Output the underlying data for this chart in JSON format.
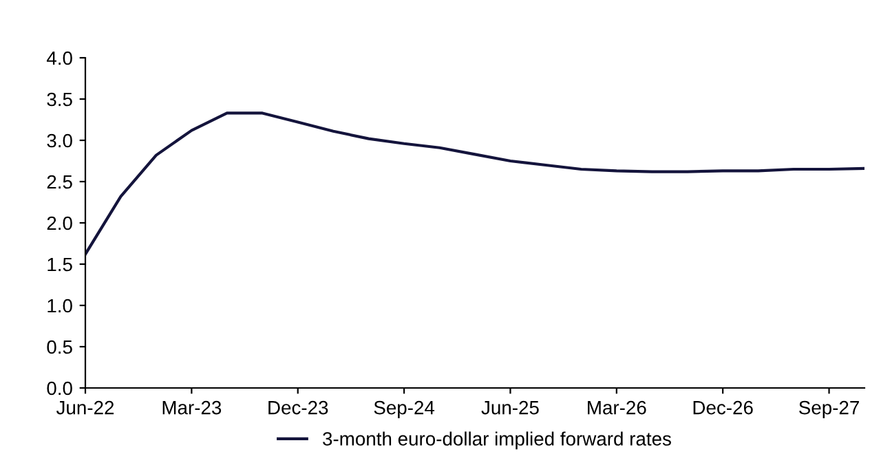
{
  "chart_data": {
    "type": "line",
    "categories": [
      "Jun-22",
      null,
      null,
      "Mar-23",
      null,
      null,
      "Dec-23",
      null,
      null,
      "Sep-24",
      null,
      null,
      "Jun-25",
      null,
      null,
      "Mar-26",
      null,
      null,
      "Dec-26",
      null,
      null,
      "Sep-27",
      null
    ],
    "series": [
      {
        "name": "3-month euro-dollar implied forward rates",
        "color": "#14143c",
        "values": [
          1.62,
          2.32,
          2.82,
          3.12,
          3.33,
          3.33,
          3.22,
          3.11,
          3.02,
          2.96,
          2.91,
          2.83,
          2.75,
          2.7,
          2.65,
          2.63,
          2.62,
          2.62,
          2.63,
          2.63,
          2.65,
          2.65,
          2.66
        ]
      }
    ],
    "ylim": [
      0,
      4
    ],
    "yticks": [
      {
        "value": 0,
        "label": "0.0"
      },
      {
        "value": 0.5,
        "label": "0.5"
      },
      {
        "value": 1,
        "label": "1.0"
      },
      {
        "value": 1.5,
        "label": "1.5"
      },
      {
        "value": 2,
        "label": "2.0"
      },
      {
        "value": 2.5,
        "label": "2.5"
      },
      {
        "value": 3,
        "label": "3.0"
      },
      {
        "value": 3.5,
        "label": "3.5"
      },
      {
        "value": 4,
        "label": "4.0"
      }
    ],
    "grid": false,
    "legend": "bottom",
    "marker": "none",
    "line_style": "solid"
  }
}
